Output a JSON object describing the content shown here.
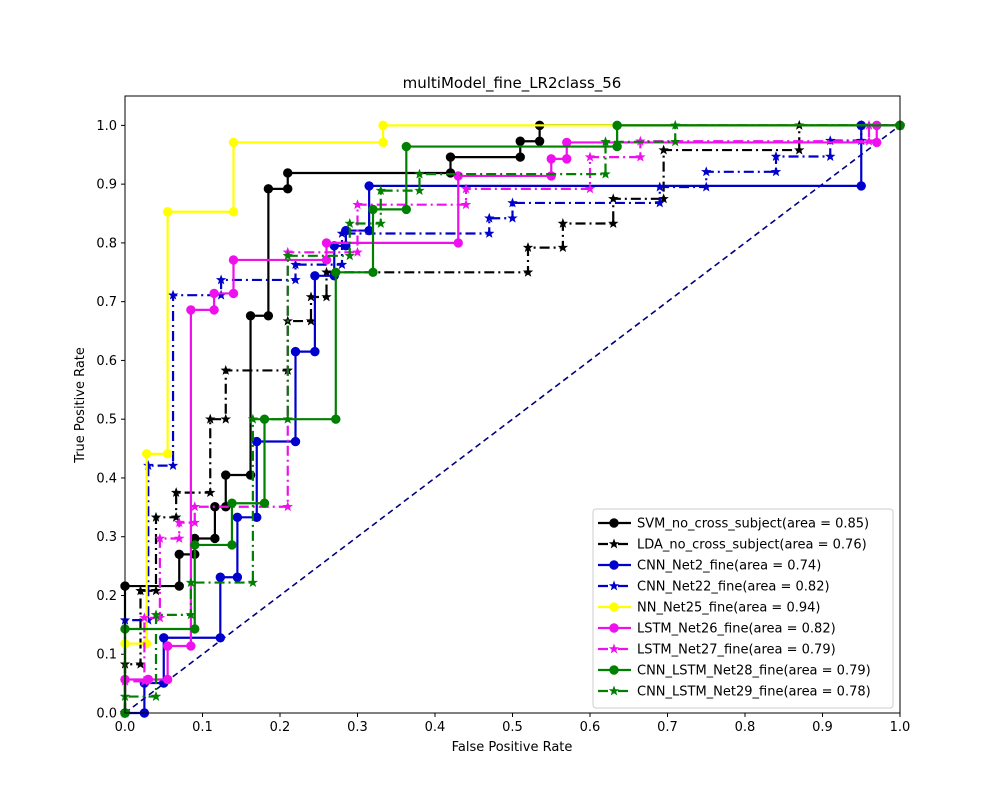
{
  "chart_data": {
    "type": "line",
    "title": "multiModel_fine_LR2class_56",
    "xlabel": "False Positive Rate",
    "ylabel": "True Positive Rate",
    "xlim": [
      0.0,
      1.0
    ],
    "ylim": [
      0.0,
      1.05
    ],
    "xticks": [
      "0.0",
      "0.1",
      "0.2",
      "0.3",
      "0.4",
      "0.5",
      "0.6",
      "0.7",
      "0.8",
      "0.9",
      "1.0"
    ],
    "yticks": [
      "0.0",
      "0.1",
      "0.2",
      "0.3",
      "0.4",
      "0.5",
      "0.6",
      "0.7",
      "0.8",
      "0.9",
      "1.0"
    ],
    "grid": false,
    "legend_position": "lower-right",
    "diagonal": {
      "color": "#000080",
      "style": "dashed"
    },
    "series": [
      {
        "name": "SVM_no_cross_subject(area = 0.85)",
        "color": "#000000",
        "dash": "solid",
        "marker": "circle",
        "points": [
          [
            0.0,
            0.0
          ],
          [
            0.0,
            0.216
          ],
          [
            0.07,
            0.216
          ],
          [
            0.07,
            0.27
          ],
          [
            0.09,
            0.27
          ],
          [
            0.09,
            0.297
          ],
          [
            0.116,
            0.297
          ],
          [
            0.116,
            0.351
          ],
          [
            0.13,
            0.351
          ],
          [
            0.13,
            0.405
          ],
          [
            0.162,
            0.405
          ],
          [
            0.162,
            0.676
          ],
          [
            0.185,
            0.676
          ],
          [
            0.185,
            0.892
          ],
          [
            0.21,
            0.892
          ],
          [
            0.21,
            0.919
          ],
          [
            0.42,
            0.919
          ],
          [
            0.42,
            0.946
          ],
          [
            0.51,
            0.946
          ],
          [
            0.51,
            0.973
          ],
          [
            0.535,
            0.973
          ],
          [
            0.535,
            1.0
          ],
          [
            1.0,
            1.0
          ]
        ]
      },
      {
        "name": "LDA_no_cross_subject(area = 0.76)",
        "color": "#000000",
        "dash": "dashdot",
        "marker": "star",
        "points": [
          [
            0.0,
            0.0
          ],
          [
            0.0,
            0.083
          ],
          [
            0.02,
            0.083
          ],
          [
            0.02,
            0.208
          ],
          [
            0.04,
            0.208
          ],
          [
            0.04,
            0.333
          ],
          [
            0.066,
            0.333
          ],
          [
            0.066,
            0.375
          ],
          [
            0.11,
            0.375
          ],
          [
            0.11,
            0.5
          ],
          [
            0.13,
            0.5
          ],
          [
            0.13,
            0.583
          ],
          [
            0.21,
            0.583
          ],
          [
            0.21,
            0.667
          ],
          [
            0.24,
            0.667
          ],
          [
            0.24,
            0.708
          ],
          [
            0.26,
            0.708
          ],
          [
            0.26,
            0.75
          ],
          [
            0.52,
            0.75
          ],
          [
            0.52,
            0.792
          ],
          [
            0.565,
            0.792
          ],
          [
            0.565,
            0.833
          ],
          [
            0.63,
            0.833
          ],
          [
            0.63,
            0.875
          ],
          [
            0.695,
            0.875
          ],
          [
            0.695,
            0.958
          ],
          [
            0.87,
            0.958
          ],
          [
            0.87,
            1.0
          ],
          [
            1.0,
            1.0
          ]
        ]
      },
      {
        "name": "CNN_Net2_fine(area = 0.74)",
        "color": "#0000cc",
        "dash": "solid",
        "marker": "circle",
        "points": [
          [
            0.0,
            0.0
          ],
          [
            0.025,
            0.0
          ],
          [
            0.025,
            0.051
          ],
          [
            0.05,
            0.051
          ],
          [
            0.05,
            0.128
          ],
          [
            0.123,
            0.128
          ],
          [
            0.123,
            0.231
          ],
          [
            0.145,
            0.231
          ],
          [
            0.145,
            0.333
          ],
          [
            0.17,
            0.333
          ],
          [
            0.17,
            0.462
          ],
          [
            0.22,
            0.462
          ],
          [
            0.22,
            0.615
          ],
          [
            0.245,
            0.615
          ],
          [
            0.245,
            0.744
          ],
          [
            0.27,
            0.744
          ],
          [
            0.27,
            0.795
          ],
          [
            0.285,
            0.795
          ],
          [
            0.285,
            0.821
          ],
          [
            0.315,
            0.821
          ],
          [
            0.315,
            0.897
          ],
          [
            0.95,
            0.897
          ],
          [
            0.95,
            1.0
          ],
          [
            1.0,
            1.0
          ]
        ]
      },
      {
        "name": "CNN_Net22_fine(area = 0.82)",
        "color": "#0000cc",
        "dash": "dashdot",
        "marker": "star",
        "points": [
          [
            0.0,
            0.0
          ],
          [
            0.0,
            0.158
          ],
          [
            0.03,
            0.158
          ],
          [
            0.03,
            0.421
          ],
          [
            0.062,
            0.421
          ],
          [
            0.062,
            0.711
          ],
          [
            0.124,
            0.711
          ],
          [
            0.124,
            0.737
          ],
          [
            0.22,
            0.737
          ],
          [
            0.22,
            0.763
          ],
          [
            0.28,
            0.763
          ],
          [
            0.28,
            0.816
          ],
          [
            0.47,
            0.816
          ],
          [
            0.47,
            0.842
          ],
          [
            0.5,
            0.842
          ],
          [
            0.5,
            0.868
          ],
          [
            0.69,
            0.868
          ],
          [
            0.69,
            0.895
          ],
          [
            0.75,
            0.895
          ],
          [
            0.75,
            0.921
          ],
          [
            0.84,
            0.921
          ],
          [
            0.84,
            0.947
          ],
          [
            0.91,
            0.947
          ],
          [
            0.91,
            0.974
          ],
          [
            0.95,
            0.974
          ],
          [
            0.95,
            1.0
          ],
          [
            1.0,
            1.0
          ]
        ]
      },
      {
        "name": "NN_Net25_fine(area = 0.94)",
        "color": "#ffff00",
        "dash": "solid",
        "marker": "circle",
        "points": [
          [
            0.0,
            0.0
          ],
          [
            0.0,
            0.118
          ],
          [
            0.028,
            0.118
          ],
          [
            0.028,
            0.441
          ],
          [
            0.055,
            0.441
          ],
          [
            0.055,
            0.853
          ],
          [
            0.14,
            0.853
          ],
          [
            0.14,
            0.971
          ],
          [
            0.333,
            0.971
          ],
          [
            0.333,
            1.0
          ],
          [
            1.0,
            1.0
          ]
        ]
      },
      {
        "name": "LSTM_Net26_fine(area = 0.82)",
        "color": "#ee11ee",
        "dash": "solid",
        "marker": "circle",
        "points": [
          [
            0.0,
            0.0
          ],
          [
            0.0,
            0.057
          ],
          [
            0.03,
            0.057
          ],
          [
            0.03,
            0.057
          ],
          [
            0.055,
            0.057
          ],
          [
            0.055,
            0.114
          ],
          [
            0.085,
            0.114
          ],
          [
            0.085,
            0.686
          ],
          [
            0.115,
            0.686
          ],
          [
            0.115,
            0.714
          ],
          [
            0.14,
            0.714
          ],
          [
            0.14,
            0.771
          ],
          [
            0.26,
            0.771
          ],
          [
            0.26,
            0.8
          ],
          [
            0.43,
            0.8
          ],
          [
            0.43,
            0.914
          ],
          [
            0.55,
            0.914
          ],
          [
            0.55,
            0.943
          ],
          [
            0.57,
            0.943
          ],
          [
            0.57,
            0.971
          ],
          [
            0.97,
            0.971
          ],
          [
            0.97,
            1.0
          ],
          [
            1.0,
            1.0
          ]
        ]
      },
      {
        "name": "LSTM_Net27_fine(area = 0.79)",
        "color": "#ee11ee",
        "dash": "dashdot",
        "marker": "star",
        "points": [
          [
            0.0,
            0.0
          ],
          [
            0.0,
            0.054
          ],
          [
            0.025,
            0.054
          ],
          [
            0.025,
            0.162
          ],
          [
            0.045,
            0.162
          ],
          [
            0.045,
            0.297
          ],
          [
            0.07,
            0.297
          ],
          [
            0.07,
            0.324
          ],
          [
            0.09,
            0.324
          ],
          [
            0.09,
            0.351
          ],
          [
            0.21,
            0.351
          ],
          [
            0.21,
            0.784
          ],
          [
            0.3,
            0.784
          ],
          [
            0.3,
            0.865
          ],
          [
            0.44,
            0.865
          ],
          [
            0.44,
            0.892
          ],
          [
            0.6,
            0.892
          ],
          [
            0.6,
            0.946
          ],
          [
            0.665,
            0.946
          ],
          [
            0.665,
            0.973
          ],
          [
            0.96,
            0.973
          ],
          [
            0.96,
            1.0
          ],
          [
            1.0,
            1.0
          ]
        ]
      },
      {
        "name": "CNN_LSTM_Net28_fine(area = 0.79)",
        "color": "#008000",
        "dash": "solid",
        "marker": "circle",
        "points": [
          [
            0.0,
            0.0
          ],
          [
            0.0,
            0.143
          ],
          [
            0.09,
            0.143
          ],
          [
            0.09,
            0.286
          ],
          [
            0.138,
            0.286
          ],
          [
            0.138,
            0.357
          ],
          [
            0.18,
            0.357
          ],
          [
            0.18,
            0.5
          ],
          [
            0.272,
            0.5
          ],
          [
            0.272,
            0.75
          ],
          [
            0.32,
            0.75
          ],
          [
            0.32,
            0.857
          ],
          [
            0.363,
            0.857
          ],
          [
            0.363,
            0.964
          ],
          [
            0.635,
            0.964
          ],
          [
            0.635,
            1.0
          ],
          [
            1.0,
            1.0
          ]
        ]
      },
      {
        "name": "CNN_LSTM_Net29_fine(area = 0.78)",
        "color": "#008000",
        "dash": "dashdot",
        "marker": "star",
        "points": [
          [
            0.0,
            0.0
          ],
          [
            0.0,
            0.028
          ],
          [
            0.04,
            0.028
          ],
          [
            0.04,
            0.167
          ],
          [
            0.085,
            0.167
          ],
          [
            0.085,
            0.222
          ],
          [
            0.165,
            0.222
          ],
          [
            0.165,
            0.5
          ],
          [
            0.21,
            0.5
          ],
          [
            0.21,
            0.778
          ],
          [
            0.29,
            0.778
          ],
          [
            0.29,
            0.833
          ],
          [
            0.33,
            0.833
          ],
          [
            0.33,
            0.889
          ],
          [
            0.38,
            0.889
          ],
          [
            0.38,
            0.917
          ],
          [
            0.62,
            0.917
          ],
          [
            0.62,
            0.972
          ],
          [
            0.71,
            0.972
          ],
          [
            0.71,
            1.0
          ],
          [
            1.0,
            1.0
          ]
        ]
      }
    ]
  }
}
